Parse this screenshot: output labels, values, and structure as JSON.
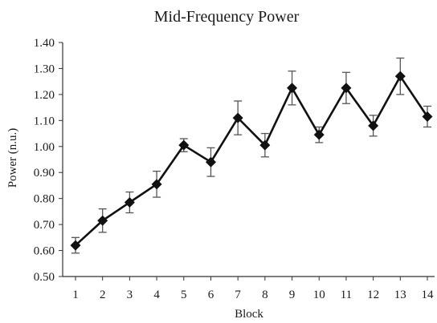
{
  "chart_data": {
    "type": "line",
    "title": "Mid-Frequency Power",
    "xlabel": "Block",
    "ylabel": "Power (n.u.)",
    "ylim": [
      0.5,
      1.4
    ],
    "yticks": [
      "0.50",
      "0.60",
      "0.70",
      "0.80",
      "0.90",
      "1.00",
      "1.10",
      "1.20",
      "1.30",
      "1.40"
    ],
    "categories": [
      "1",
      "2",
      "3",
      "4",
      "5",
      "6",
      "7",
      "8",
      "9",
      "10",
      "11",
      "12",
      "13",
      "14"
    ],
    "series": [
      {
        "values": [
          0.62,
          0.715,
          0.785,
          0.855,
          1.005,
          0.94,
          1.11,
          1.005,
          1.225,
          1.045,
          1.225,
          1.08,
          1.27,
          1.115
        ],
        "error": [
          0.03,
          0.045,
          0.04,
          0.05,
          0.025,
          0.055,
          0.065,
          0.045,
          0.065,
          0.03,
          0.06,
          0.04,
          0.07,
          0.04
        ],
        "marker": "diamond",
        "color": "#111111"
      }
    ],
    "grid": false,
    "legend": "none"
  }
}
